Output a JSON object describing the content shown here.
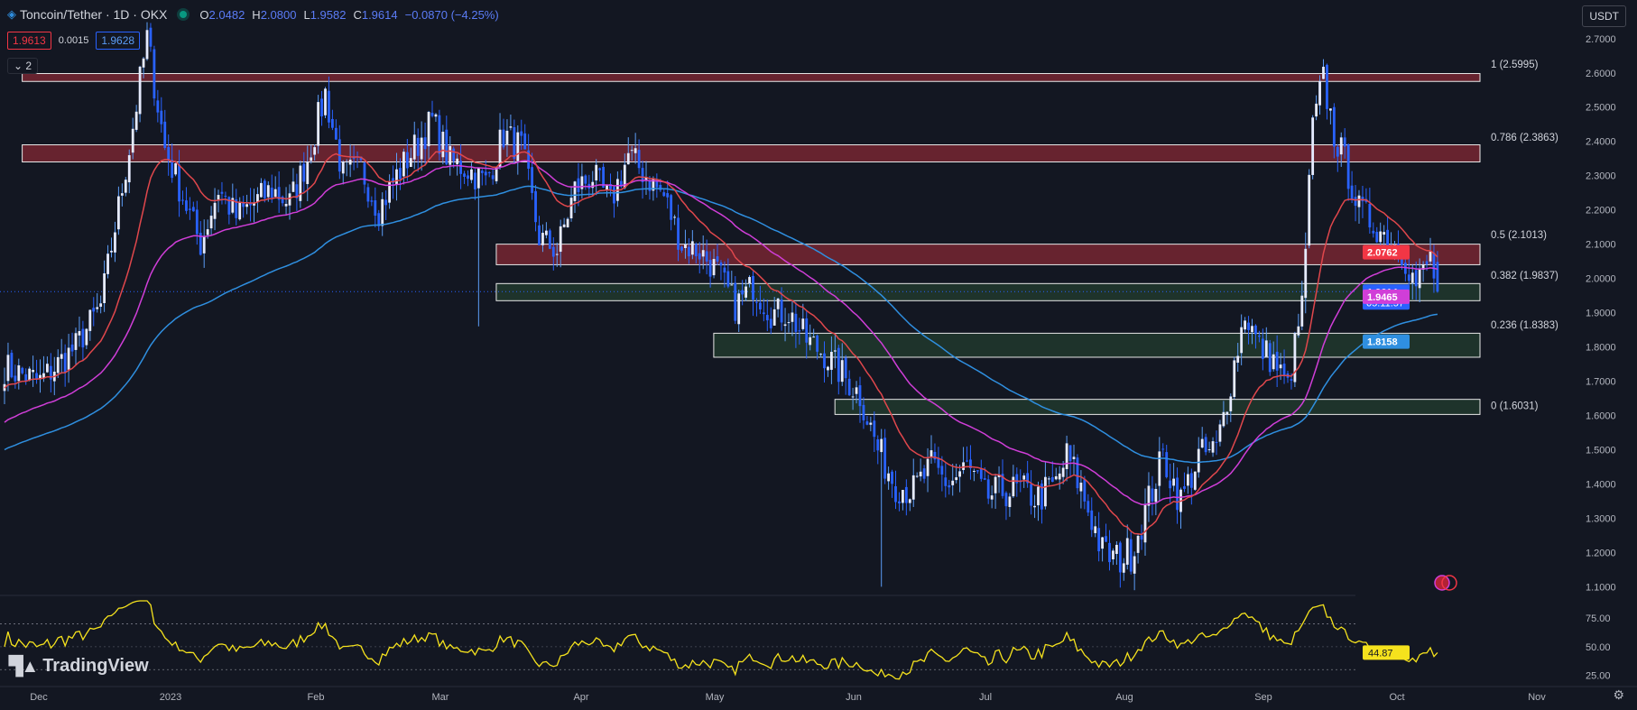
{
  "header": {
    "symbol": "Toncoin/Tether · 1D · OKX",
    "open_label": "O",
    "open": "2.0482",
    "high_label": "H",
    "high": "2.0800",
    "low_label": "L",
    "low": "1.9582",
    "close_label": "C",
    "close": "1.9614",
    "change": "−0.0870 (−4.25%)",
    "bid": "1.9613",
    "spread": "0.0015",
    "ask": "1.9628",
    "indicators_collapsed": "2",
    "currency": "USDT"
  },
  "brand": "TradingView",
  "colors": {
    "up": "#5b9cf6",
    "down": "#2962ff",
    "ema_red": "#e0474c",
    "ema_magenta": "#d03ed8",
    "ema_blue": "#2f8fe0",
    "rsi": "#f5e21d",
    "red_zone": "#8c2a35",
    "green_zone": "#23402f"
  },
  "chart_data": {
    "type": "candlestick",
    "y_axis": {
      "min": 1.08,
      "max": 2.76,
      "ticks": [
        "2.7000",
        "2.6000",
        "2.5000",
        "2.4000",
        "2.3000",
        "2.2000",
        "2.1000",
        "2.0000",
        "1.9000",
        "1.8000",
        "1.7000",
        "1.6000",
        "1.5000",
        "1.4000",
        "1.3000",
        "1.2000",
        "1.1000"
      ]
    },
    "x_axis": {
      "labels": [
        "Dec",
        "2023",
        "Feb",
        "Mar",
        "Apr",
        "May",
        "Jun",
        "Jul",
        "Aug",
        "Sep",
        "Oct",
        "Nov"
      ]
    },
    "close_anchors": [
      [
        0,
        1.74
      ],
      [
        10,
        1.7
      ],
      [
        20,
        1.8
      ],
      [
        27,
        1.92
      ],
      [
        35,
        2.38
      ],
      [
        40,
        2.7
      ],
      [
        45,
        2.38
      ],
      [
        50,
        2.24
      ],
      [
        55,
        2.1
      ],
      [
        60,
        2.26
      ],
      [
        65,
        2.18
      ],
      [
        70,
        2.22
      ],
      [
        75,
        2.26
      ],
      [
        80,
        2.22
      ],
      [
        85,
        2.35
      ],
      [
        90,
        2.54
      ],
      [
        95,
        2.3
      ],
      [
        100,
        2.32
      ],
      [
        105,
        2.2
      ],
      [
        110,
        2.3
      ],
      [
        115,
        2.38
      ],
      [
        120,
        2.46
      ],
      [
        125,
        2.34
      ],
      [
        130,
        2.32
      ],
      [
        135,
        2.28
      ],
      [
        140,
        2.42
      ],
      [
        145,
        2.38
      ],
      [
        150,
        2.12
      ],
      [
        155,
        2.08
      ],
      [
        160,
        2.26
      ],
      [
        165,
        2.3
      ],
      [
        170,
        2.22
      ],
      [
        175,
        2.36
      ],
      [
        180,
        2.3
      ],
      [
        185,
        2.24
      ],
      [
        190,
        2.1
      ],
      [
        195,
        2.08
      ],
      [
        200,
        2.02
      ],
      [
        205,
        1.92
      ],
      [
        210,
        1.98
      ],
      [
        215,
        1.9
      ],
      [
        220,
        1.9
      ],
      [
        225,
        1.82
      ],
      [
        230,
        1.78
      ],
      [
        235,
        1.72
      ],
      [
        240,
        1.66
      ],
      [
        245,
        1.5
      ],
      [
        250,
        1.4
      ],
      [
        255,
        1.38
      ],
      [
        260,
        1.45
      ],
      [
        265,
        1.4
      ],
      [
        270,
        1.45
      ],
      [
        275,
        1.36
      ],
      [
        280,
        1.38
      ],
      [
        285,
        1.38
      ],
      [
        290,
        1.36
      ],
      [
        295,
        1.4
      ],
      [
        298,
        1.48
      ],
      [
        300,
        1.44
      ],
      [
        305,
        1.3
      ],
      [
        308,
        1.2
      ],
      [
        312,
        1.18
      ],
      [
        316,
        1.2
      ],
      [
        320,
        1.32
      ],
      [
        325,
        1.48
      ],
      [
        330,
        1.35
      ],
      [
        335,
        1.48
      ],
      [
        340,
        1.5
      ],
      [
        344,
        1.7
      ],
      [
        348,
        1.9
      ],
      [
        352,
        1.8
      ],
      [
        356,
        1.76
      ],
      [
        360,
        1.68
      ],
      [
        364,
        1.92
      ],
      [
        367,
        2.44
      ],
      [
        370,
        2.58
      ],
      [
        373,
        2.42
      ],
      [
        376,
        2.34
      ],
      [
        380,
        2.2
      ],
      [
        384,
        2.16
      ],
      [
        388,
        2.12
      ],
      [
        392,
        2.08
      ],
      [
        396,
        1.98
      ],
      [
        400,
        2.06
      ],
      [
        402,
        1.96
      ]
    ],
    "series": [
      {
        "name": "Toncoin/Tether",
        "type": "candlestick",
        "ohlc_last": {
          "open": 2.0482,
          "high": 2.08,
          "low": 1.9582,
          "close": 1.9614
        }
      }
    ],
    "last_price": "1.9614",
    "countdown": "05:11:57",
    "ema_labels": [
      "2.0762",
      "1.9465",
      "1.8158"
    ],
    "fib_levels": [
      {
        "label": "1 (2.5995)",
        "value": 2.5995
      },
      {
        "label": "0.786 (2.3863)",
        "value": 2.3863
      },
      {
        "label": "0.5 (2.1013)",
        "value": 2.1013
      },
      {
        "label": "0.382 (1.9837)",
        "value": 1.9837
      },
      {
        "label": "0.236 (1.8383)",
        "value": 1.8383
      },
      {
        "label": "0 (1.6031)",
        "value": 1.6031
      }
    ],
    "zones": [
      {
        "kind": "resistance",
        "top": 2.598,
        "bottom": 2.575,
        "from_bar": 8
      },
      {
        "kind": "resistance",
        "top": 2.39,
        "bottom": 2.34,
        "from_bar": 8
      },
      {
        "kind": "resistance",
        "top": 2.1,
        "bottom": 2.04,
        "from_bar": 141
      },
      {
        "kind": "support",
        "top": 1.985,
        "bottom": 1.935,
        "from_bar": 141
      },
      {
        "kind": "support",
        "top": 1.84,
        "bottom": 1.77,
        "from_bar": 202
      },
      {
        "kind": "support",
        "top": 1.647,
        "bottom": 1.603,
        "from_bar": 236
      }
    ],
    "rsi": {
      "min": 20,
      "max": 90,
      "ticks": [
        "75.00",
        "50.00",
        "25.00"
      ],
      "bands": [
        70,
        30
      ],
      "last": "44.87"
    }
  }
}
